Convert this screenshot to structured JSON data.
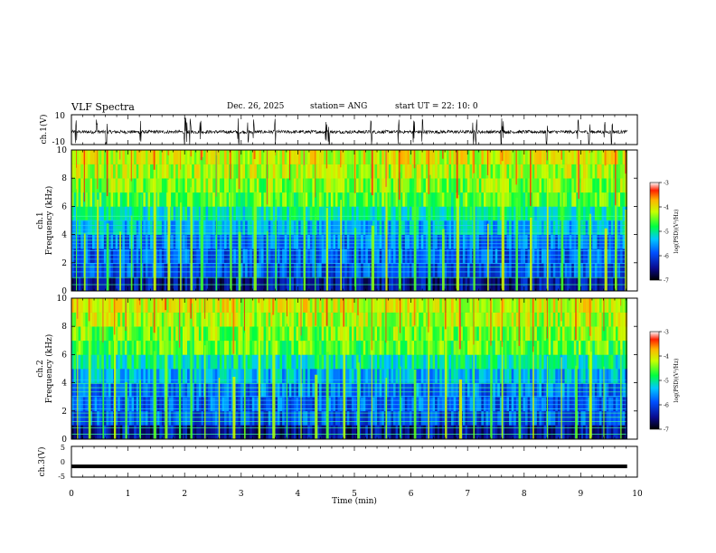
{
  "header": {
    "title": "VLF Spectra",
    "date": "Dec. 26, 2025",
    "station": "station= ANG",
    "start": "start  UT =   22: 10: 0"
  },
  "chart_data": [
    {
      "type": "line",
      "id": "ch1-waveform",
      "ylabel": "ch.1(V)",
      "ylim": [
        -10,
        10
      ],
      "y_ticks": [
        "10",
        "-10"
      ],
      "xlim": [
        0,
        10
      ],
      "baseline_v": -1.5,
      "spikes_min": [
        0.08,
        0.45,
        0.62,
        1.22,
        2.0,
        2.03,
        2.1,
        2.28,
        2.95,
        3.12,
        3.22,
        3.6,
        4.5,
        4.55,
        5.3,
        5.78,
        6.05,
        6.2,
        7.1,
        7.15,
        7.6,
        7.62,
        8.4,
        8.95,
        9.15,
        9.42,
        9.55
      ]
    },
    {
      "type": "heatmap",
      "id": "ch1-spectrogram",
      "ylabel": "Frequency (kHz)",
      "channel_label": "ch.1",
      "ylim": [
        0,
        10
      ],
      "y_ticks": [
        "0",
        "2",
        "4",
        "6",
        "8",
        "10"
      ],
      "xlim": [
        0,
        10
      ],
      "colorbar": {
        "label": "log(PSD)(V²/Hz)",
        "range": [
          -7,
          -3
        ],
        "ticks": [
          "-3",
          "-4",
          "-5",
          "-6",
          "-7"
        ]
      },
      "interference_lines_khz": [
        0.45,
        0.95,
        1.35,
        1.7,
        1.95,
        2.25,
        2.55,
        2.85,
        3.1,
        3.35,
        3.6,
        3.85,
        4.1,
        4.35,
        4.65,
        5.0,
        5.3
      ],
      "sferic_times_min": [
        0.08,
        0.22,
        0.45,
        0.62,
        0.85,
        1.05,
        1.22,
        1.45,
        1.7,
        1.92,
        2.1,
        2.28,
        2.55,
        2.8,
        2.95,
        3.22,
        3.45,
        3.6,
        3.85,
        4.1,
        4.3,
        4.5,
        4.75,
        5.0,
        5.3,
        5.55,
        5.78,
        6.05,
        6.3,
        6.55,
        6.8,
        7.1,
        7.35,
        7.6,
        7.85,
        8.1,
        8.4,
        8.65,
        8.95,
        9.15,
        9.42,
        9.6,
        9.78
      ]
    },
    {
      "type": "heatmap",
      "id": "ch2-spectrogram",
      "ylabel": "Frequency (kHz)",
      "channel_label": "ch.2",
      "ylim": [
        0,
        10
      ],
      "y_ticks": [
        "0",
        "2",
        "4",
        "6",
        "8",
        "10"
      ],
      "xlim": [
        0,
        10
      ],
      "colorbar": {
        "label": "log(PSD)(V²/Hz)",
        "range": [
          -7,
          -3
        ],
        "ticks": [
          "-3",
          "-4",
          "-5",
          "-6",
          "-7"
        ]
      },
      "interference_lines_khz": [
        0.35,
        0.8,
        1.25,
        1.55,
        1.85,
        2.15,
        2.45,
        2.75,
        3.05,
        3.35,
        3.65,
        3.95,
        4.2
      ],
      "sferic_times_min": [
        0.1,
        0.3,
        0.55,
        0.75,
        0.95,
        1.2,
        1.45,
        1.65,
        1.9,
        2.1,
        2.35,
        2.6,
        2.85,
        3.05,
        3.3,
        3.55,
        3.8,
        4.05,
        4.3,
        4.5,
        4.8,
        5.05,
        5.3,
        5.55,
        5.8,
        6.05,
        6.3,
        6.6,
        6.85,
        7.1,
        7.4,
        7.6,
        7.9,
        8.15,
        8.4,
        8.65,
        8.9,
        9.15,
        9.4,
        9.7
      ]
    },
    {
      "type": "line",
      "id": "ch3-waveform",
      "ylabel": "ch.3(V)",
      "ylim": [
        -5,
        5
      ],
      "y_ticks": [
        "5",
        "0",
        "-5"
      ],
      "xlim": [
        0,
        10
      ],
      "baseline_v": -1.5,
      "xlabel": "Time (min)",
      "x_ticks": [
        "0",
        "1",
        "2",
        "3",
        "4",
        "5",
        "6",
        "7",
        "8",
        "9",
        "10"
      ]
    }
  ]
}
